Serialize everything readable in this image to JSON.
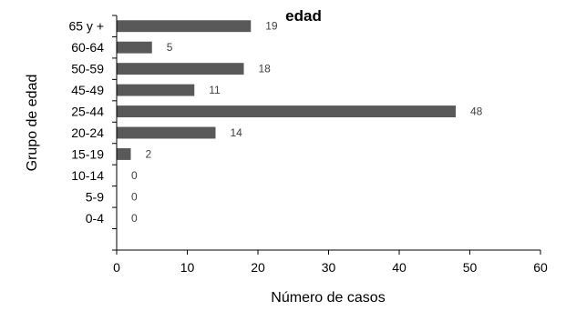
{
  "chart_data": {
    "type": "bar",
    "orientation": "horizontal",
    "title": "edad",
    "xlabel": "Número de casos",
    "ylabel": "Grupo de edad",
    "categories": [
      "0-4",
      "5-9",
      "10-14",
      "15-19",
      "20-24",
      "25-44",
      "45-49",
      "50-59",
      "60-64",
      "65 y +"
    ],
    "values": [
      0,
      0,
      0,
      2,
      14,
      48,
      11,
      18,
      5,
      19
    ],
    "xlim": [
      0,
      60
    ],
    "xticks": [
      0,
      10,
      20,
      30,
      40,
      50,
      60
    ],
    "grid": false,
    "legend": "none",
    "bar_color": "#595959",
    "label_color": "#404040"
  }
}
